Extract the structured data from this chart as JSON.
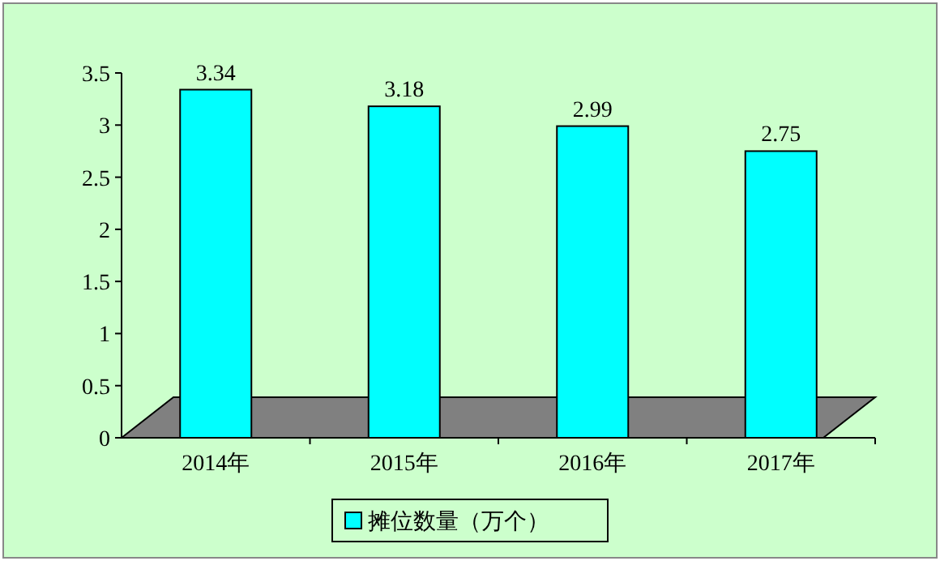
{
  "chart_data": {
    "type": "bar",
    "categories": [
      "2014年",
      "2015年",
      "2016年",
      "2017年"
    ],
    "series": [
      {
        "name": "摊位数量（万个）",
        "color": "#00ffff",
        "values": [
          3.34,
          3.18,
          2.99,
          2.75
        ]
      }
    ],
    "ylim": [
      0,
      3.5
    ],
    "yticks": [
      0,
      0.5,
      1,
      1.5,
      2,
      2.5,
      3,
      3.5
    ],
    "data_labels": true,
    "legend": "bottom"
  }
}
